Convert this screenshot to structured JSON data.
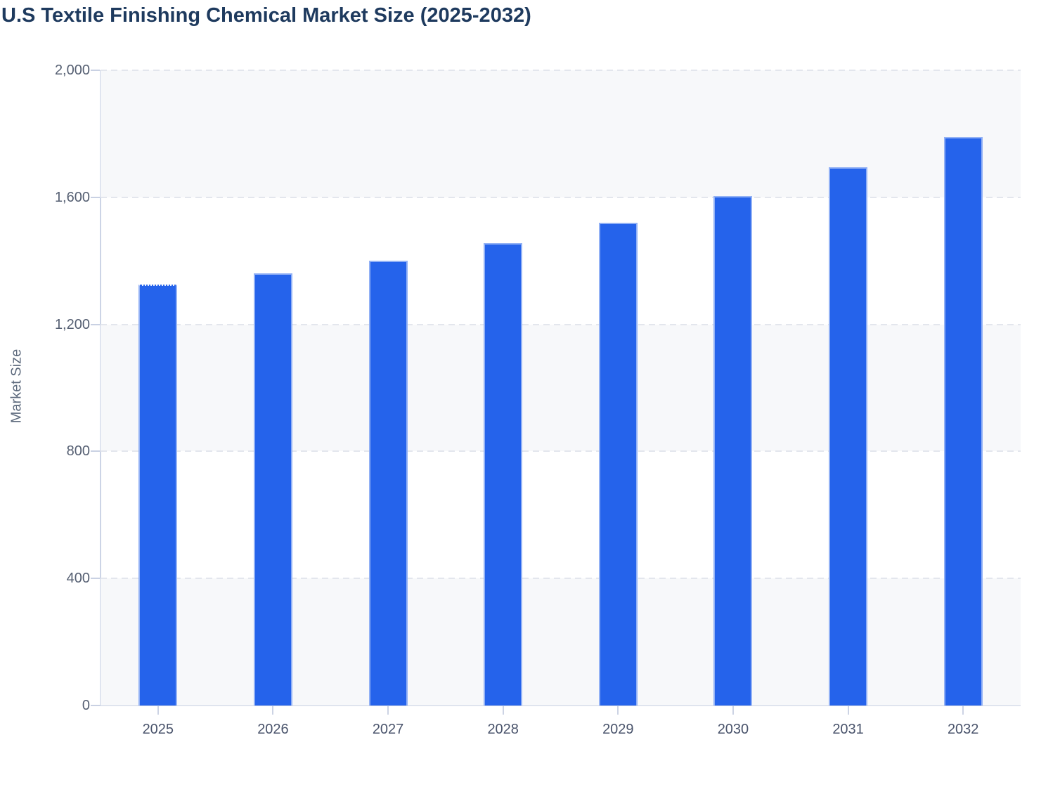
{
  "title": "U.S Textile Finishing Chemical Market Size (2025-2032)",
  "chart_data": {
    "type": "bar",
    "title": "U.S Textile Finishing Chemical Market Size (2025-2032)",
    "categories": [
      "2025",
      "2026",
      "2027",
      "2028",
      "2029",
      "2030",
      "2031",
      "2032"
    ],
    "values": [
      1325,
      1360,
      1400,
      1455,
      1520,
      1605,
      1695,
      1790
    ],
    "xlabel": "",
    "ylabel": "Market Size",
    "ylim": [
      0,
      2000
    ],
    "yticks": [
      0,
      400,
      800,
      1200,
      1600,
      2000
    ],
    "ytick_labels": [
      "0",
      "400",
      "800",
      "1,200",
      "1,600",
      "2,000"
    ],
    "grid": "horizontal-dashed",
    "legend_position": "none",
    "background_bands": "alternating"
  },
  "colors": {
    "bar_fill": "#2563eb",
    "title_text": "#1e3a5e",
    "axis_line": "#c9d1e3",
    "gridline": "#e3e6ed",
    "band_shade": "#f7f8fa",
    "tick_label": "#555f72"
  }
}
